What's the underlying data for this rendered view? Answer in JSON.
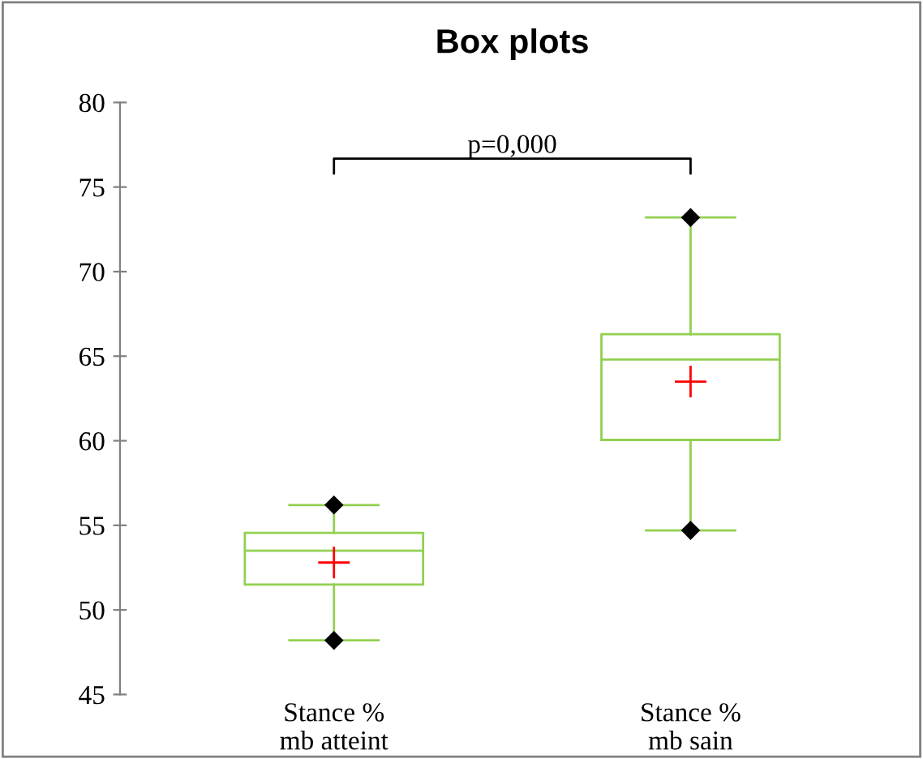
{
  "chart_data": {
    "type": "box",
    "title": "Box plots",
    "categories": [
      "Stance %\nmb atteint",
      "Stance %\nmb sain"
    ],
    "boxes": [
      {
        "low": 48.2,
        "q1": 51.5,
        "median": 53.5,
        "q3": 54.55,
        "high": 56.2,
        "mean": 52.8,
        "outliers": [
          48.2,
          56.2
        ]
      },
      {
        "low": 54.7,
        "q1": 60.05,
        "median": 64.8,
        "q3": 66.3,
        "high": 73.2,
        "mean": 63.5,
        "outliers": [
          54.7,
          73.2
        ]
      }
    ],
    "color": "#92d050",
    "ylim": [
      45,
      80
    ],
    "yticks": [
      45,
      50,
      55,
      60,
      65,
      70,
      75,
      80
    ],
    "annotations": [
      "p=0,000"
    ],
    "grid": false,
    "legend": false
  }
}
